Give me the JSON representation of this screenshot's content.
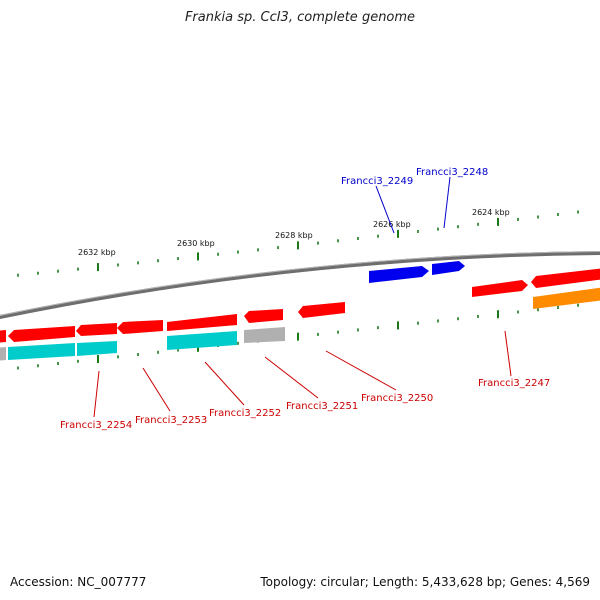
{
  "title": "Frankia sp. CcI3, complete genome",
  "accession_text": "Accession: NC_007777",
  "summary_text": "Topology: circular; Length: 5,433,628 bp; Genes: 4,569",
  "colors": {
    "forward_gene": "#ff0000",
    "reverse_gene": "#00cccc",
    "highlight_gene": "#0000ee",
    "other_gene": "#ff8c00",
    "pseudo_gene": "#b0b0b0",
    "tick": "#1a7a1a",
    "backbone": "#7a7a7a",
    "label_red": "#cc0000",
    "label_blue": "#0000cc"
  },
  "axis_labels": [
    "2632 kbp",
    "2630 kbp",
    "2628 kbp",
    "2626 kbp",
    "2624 kbp"
  ],
  "gene_labels": [
    {
      "id": "g2248",
      "text": "Francci3_2248",
      "color": "blue"
    },
    {
      "id": "g2249",
      "text": "Francci3_2249",
      "color": "blue"
    },
    {
      "id": "g2247",
      "text": "Francci3_2247",
      "color": "red"
    },
    {
      "id": "g2250",
      "text": "Francci3_2250",
      "color": "red"
    },
    {
      "id": "g2251",
      "text": "Francci3_2251",
      "color": "red"
    },
    {
      "id": "g2252",
      "text": "Francci3_2252",
      "color": "red"
    },
    {
      "id": "g2253",
      "text": "Francci3_2253",
      "color": "red"
    },
    {
      "id": "g2254",
      "text": "Francci3_2254",
      "color": "red"
    }
  ]
}
